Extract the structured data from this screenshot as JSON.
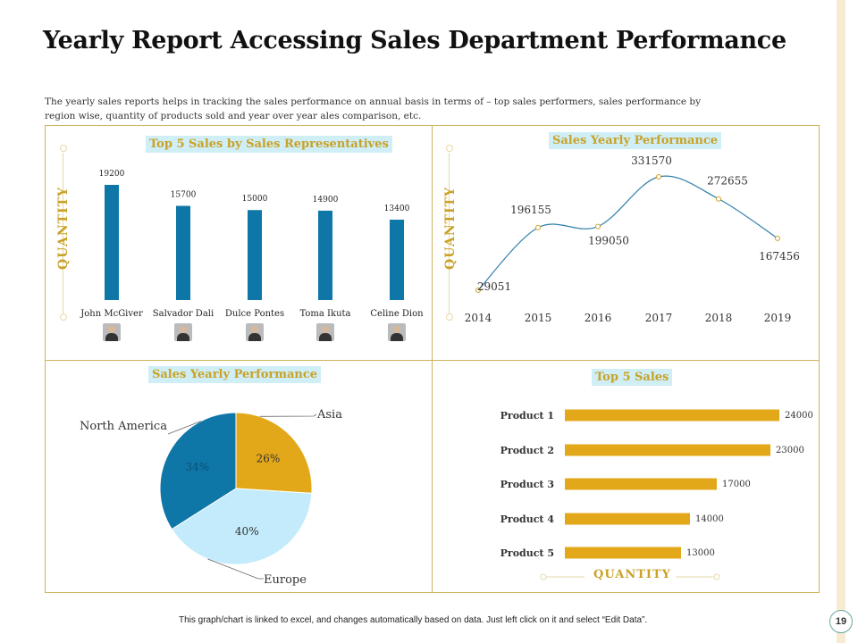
{
  "page": {
    "title": "Yearly Report Accessing Sales Department Performance",
    "subtitle": "The yearly sales reports helps in tracking the sales performance on annual basis in terms of – top sales performers, sales performance by region wise, quantity of products sold and year over year ales comparison,  etc.",
    "footer": "This graph/chart is linked to excel, and changes automatically based on data. Just left click on it and select “Edit Data”.",
    "page_number": "19"
  },
  "colors": {
    "accent": "#c9a227",
    "bar_blue": "#0e77a8",
    "gold": "#e3a81a",
    "light_blue": "#c3ebfb",
    "panel_border": "#cdb45a",
    "title_bg": "#cfeef6"
  },
  "chart_data": [
    {
      "type": "bar",
      "title": "Top 5 Sales by Sales Representatives",
      "ylabel": "QUANTITY",
      "categories": [
        "John McGiver",
        "Salvador Dali",
        "Dulce Pontes",
        "Toma Ikuta",
        "Celine Dion"
      ],
      "values": [
        19200,
        15700,
        15000,
        14900,
        13400
      ],
      "value_labels": [
        "19200",
        "15700",
        "15000",
        "14900",
        "13400"
      ],
      "ylim": [
        0,
        19200
      ],
      "icons": [
        "avatar-photo",
        "avatar-photo",
        "avatar-photo",
        "avatar-photo",
        "avatar-photo"
      ]
    },
    {
      "type": "line",
      "title": "Sales Yearly Performance",
      "ylabel": "QUANTITY",
      "x": [
        "2014",
        "2015",
        "2016",
        "2017",
        "2018",
        "2019"
      ],
      "values": [
        29051,
        196155,
        199050,
        331570,
        272655,
        167456
      ],
      "value_labels": [
        "29051",
        "196155",
        "199050",
        "331570",
        "272655",
        "167456"
      ],
      "ylim": [
        29051,
        331570
      ]
    },
    {
      "type": "pie",
      "title": "Sales Yearly Performance",
      "labels": [
        "Asia",
        "Europe",
        "North America"
      ],
      "values": [
        26,
        40,
        34
      ],
      "value_labels": [
        "26%",
        "40%",
        "34%"
      ],
      "colors": [
        "#e3a81a",
        "#c3ebfb",
        "#0e77a8"
      ]
    },
    {
      "type": "bar",
      "orientation": "horizontal",
      "title": "Top 5 Sales",
      "xlabel": "QUANTITY",
      "categories": [
        "Product 1",
        "Product 2",
        "Product 3",
        "Product 4",
        "Product 5"
      ],
      "values": [
        24000,
        23000,
        17000,
        14000,
        13000
      ],
      "value_labels": [
        "24000",
        "23000",
        "17000",
        "14000",
        "13000"
      ],
      "xlim": [
        0,
        24000
      ]
    }
  ]
}
